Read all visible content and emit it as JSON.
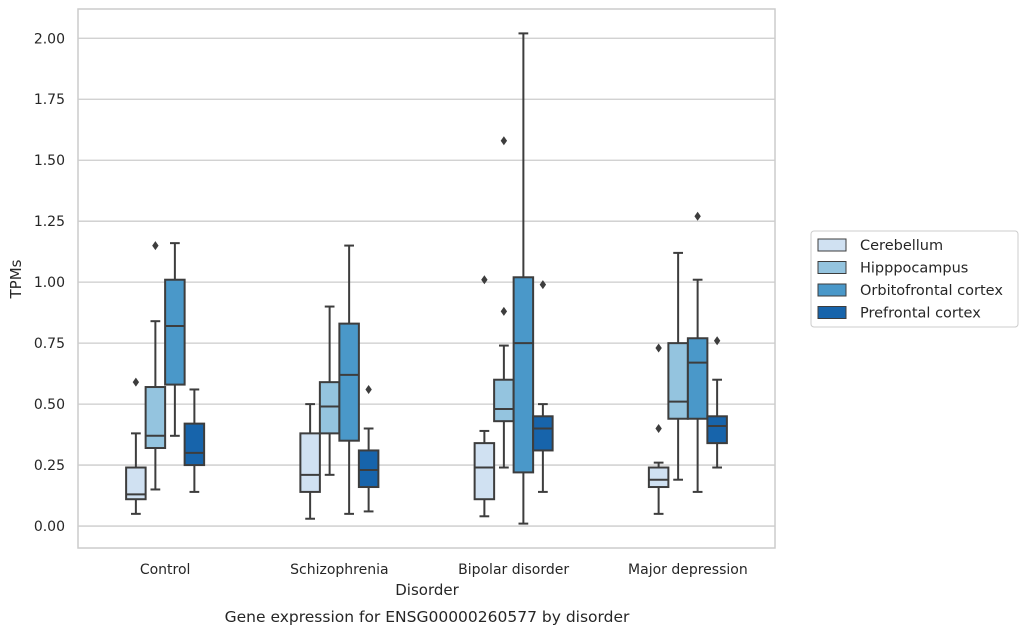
{
  "chart_data": {
    "type": "box",
    "title": "Gene expression for ENSG00000260577 by disorder",
    "xlabel": "Disorder",
    "ylabel": "TPMs",
    "ylim": [
      -0.09,
      2.12
    ],
    "yticks": [
      0.0,
      0.25,
      0.5,
      0.75,
      1.0,
      1.25,
      1.5,
      1.75,
      2.0
    ],
    "ytick_labels": [
      "0.00",
      "0.25",
      "0.50",
      "0.75",
      "1.00",
      "1.25",
      "1.50",
      "1.75",
      "2.00"
    ],
    "grid": "horizontal",
    "legend_position": "right",
    "categories": [
      "Control",
      "Schizophrenia",
      "Bipolar disorder",
      "Major depression"
    ],
    "series": [
      {
        "name": "Cerebellum",
        "color": "#d0e1f2",
        "boxes": [
          {
            "whislo": 0.05,
            "q1": 0.11,
            "med": 0.13,
            "q3": 0.24,
            "whishi": 0.38,
            "fliers": [
              0.59
            ]
          },
          {
            "whislo": 0.03,
            "q1": 0.14,
            "med": 0.21,
            "q3": 0.38,
            "whishi": 0.5,
            "fliers": []
          },
          {
            "whislo": 0.04,
            "q1": 0.11,
            "med": 0.24,
            "q3": 0.34,
            "whishi": 0.39,
            "fliers": [
              1.01
            ]
          },
          {
            "whislo": 0.05,
            "q1": 0.16,
            "med": 0.19,
            "q3": 0.24,
            "whishi": 0.26,
            "fliers": [
              0.4,
              0.73
            ]
          }
        ]
      },
      {
        "name": "Hipppocampus",
        "color": "#94c4df",
        "boxes": [
          {
            "whislo": 0.15,
            "q1": 0.32,
            "med": 0.37,
            "q3": 0.57,
            "whishi": 0.84,
            "fliers": [
              1.15
            ]
          },
          {
            "whislo": 0.21,
            "q1": 0.38,
            "med": 0.49,
            "q3": 0.59,
            "whishi": 0.9,
            "fliers": []
          },
          {
            "whislo": 0.24,
            "q1": 0.43,
            "med": 0.48,
            "q3": 0.6,
            "whishi": 0.74,
            "fliers": [
              0.88,
              1.58
            ]
          },
          {
            "whislo": 0.19,
            "q1": 0.44,
            "med": 0.51,
            "q3": 0.75,
            "whishi": 1.12,
            "fliers": []
          }
        ]
      },
      {
        "name": "Orbitofrontal cortex",
        "color": "#4a98c9",
        "boxes": [
          {
            "whislo": 0.37,
            "q1": 0.58,
            "med": 0.82,
            "q3": 1.01,
            "whishi": 1.16,
            "fliers": []
          },
          {
            "whislo": 0.05,
            "q1": 0.35,
            "med": 0.62,
            "q3": 0.83,
            "whishi": 1.15,
            "fliers": []
          },
          {
            "whislo": 0.01,
            "q1": 0.22,
            "med": 0.75,
            "q3": 1.02,
            "whishi": 2.02,
            "fliers": []
          },
          {
            "whislo": 0.14,
            "q1": 0.44,
            "med": 0.67,
            "q3": 0.77,
            "whishi": 1.01,
            "fliers": [
              1.27
            ]
          }
        ]
      },
      {
        "name": "Prefrontal cortex",
        "color": "#1764ab",
        "boxes": [
          {
            "whislo": 0.14,
            "q1": 0.25,
            "med": 0.3,
            "q3": 0.42,
            "whishi": 0.56,
            "fliers": []
          },
          {
            "whislo": 0.06,
            "q1": 0.16,
            "med": 0.23,
            "q3": 0.31,
            "whishi": 0.4,
            "fliers": [
              0.56
            ]
          },
          {
            "whislo": 0.14,
            "q1": 0.31,
            "med": 0.4,
            "q3": 0.45,
            "whishi": 0.5,
            "fliers": [
              0.99
            ]
          },
          {
            "whislo": 0.24,
            "q1": 0.34,
            "med": 0.41,
            "q3": 0.45,
            "whishi": 0.6,
            "fliers": [
              0.76
            ]
          }
        ]
      }
    ]
  }
}
